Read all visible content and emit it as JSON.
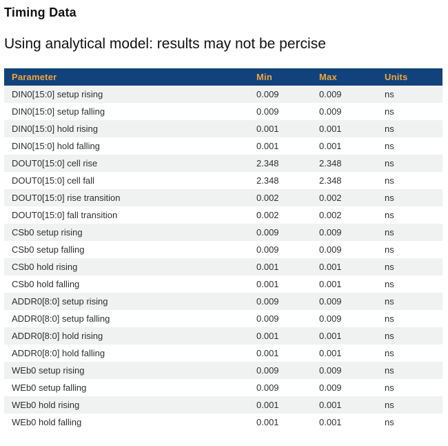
{
  "page": {
    "title": "Timing Data",
    "subtitle": "Using analytical model: results may not be percise"
  },
  "table": {
    "columns": [
      "Parameter",
      "Min",
      "Max",
      "Units"
    ],
    "rows": [
      {
        "parameter": "DIN0[15:0] setup rising",
        "min": "0.009",
        "max": "0.009",
        "units": "ns"
      },
      {
        "parameter": "DIN0[15:0] setup falling",
        "min": "0.009",
        "max": "0.009",
        "units": "ns"
      },
      {
        "parameter": "DIN0[15:0] hold rising",
        "min": "0.001",
        "max": "0.001",
        "units": "ns"
      },
      {
        "parameter": "DIN0[15:0] hold falling",
        "min": "0.001",
        "max": "0.001",
        "units": "ns"
      },
      {
        "parameter": "DOUT0[15:0] cell rise",
        "min": "2.348",
        "max": "2.348",
        "units": "ns"
      },
      {
        "parameter": "DOUT0[15:0] cell fall",
        "min": "2.348",
        "max": "2.348",
        "units": "ns"
      },
      {
        "parameter": "DOUT0[15:0] rise transition",
        "min": "0.002",
        "max": "0.002",
        "units": "ns"
      },
      {
        "parameter": "DOUT0[15:0] fall transition",
        "min": "0.002",
        "max": "0.002",
        "units": "ns"
      },
      {
        "parameter": "CSb0 setup rising",
        "min": "0.009",
        "max": "0.009",
        "units": "ns"
      },
      {
        "parameter": "CSb0 setup falling",
        "min": "0.009",
        "max": "0.009",
        "units": "ns"
      },
      {
        "parameter": "CSb0 hold rising",
        "min": "0.001",
        "max": "0.001",
        "units": "ns"
      },
      {
        "parameter": "CSb0 hold falling",
        "min": "0.001",
        "max": "0.001",
        "units": "ns"
      },
      {
        "parameter": "ADDR0[8:0] setup rising",
        "min": "0.009",
        "max": "0.009",
        "units": "ns"
      },
      {
        "parameter": "ADDR0[8:0] setup falling",
        "min": "0.009",
        "max": "0.009",
        "units": "ns"
      },
      {
        "parameter": "ADDR0[8:0] hold rising",
        "min": "0.001",
        "max": "0.001",
        "units": "ns"
      },
      {
        "parameter": "ADDR0[8:0] hold falling",
        "min": "0.001",
        "max": "0.001",
        "units": "ns"
      },
      {
        "parameter": "WEb0 setup rising",
        "min": "0.009",
        "max": "0.009",
        "units": "ns"
      },
      {
        "parameter": "WEb0 setup falling",
        "min": "0.009",
        "max": "0.009",
        "units": "ns"
      },
      {
        "parameter": "WEb0 hold rising",
        "min": "0.001",
        "max": "0.001",
        "units": "ns"
      },
      {
        "parameter": "WEb0 hold falling",
        "min": "0.001",
        "max": "0.001",
        "units": "ns"
      }
    ]
  },
  "colors": {
    "header_bg": "#12427c",
    "header_text": "#efa63d",
    "stripe_bg": "#f0f1f1",
    "row_bg": "#ffffff",
    "cell_text": "#2f2f2f",
    "title_text": "#111111"
  }
}
